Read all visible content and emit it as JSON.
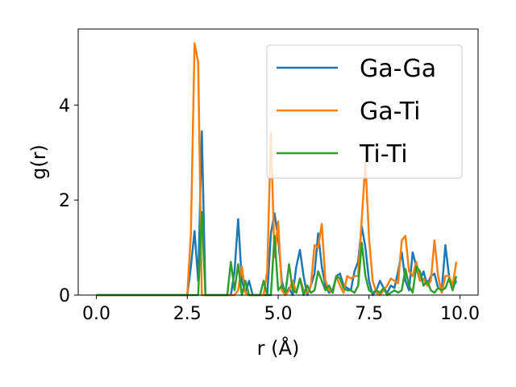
{
  "chart_data": {
    "type": "line",
    "title": "",
    "xlabel": "r (Å)",
    "ylabel": "g(r)",
    "xlim": [
      -0.5,
      10.5
    ],
    "ylim": [
      0,
      5.6
    ],
    "xticks": [
      0.0,
      2.5,
      5.0,
      7.5,
      10.0
    ],
    "xtick_labels": [
      "0.0",
      "2.5",
      "5.0",
      "7.5",
      "10.0"
    ],
    "yticks": [
      0,
      2,
      4
    ],
    "ytick_labels": [
      "0",
      "2",
      "4"
    ],
    "grid": false,
    "legend_position": "top-right",
    "series": [
      {
        "name": "Ga-Ga",
        "color": "#1f77b4",
        "x": [
          0.0,
          2.5,
          2.6,
          2.7,
          2.8,
          2.9,
          3.0,
          3.7,
          3.8,
          3.9,
          4.0,
          4.1,
          4.2,
          4.3,
          4.7,
          4.8,
          4.9,
          5.0,
          5.1,
          5.2,
          5.3,
          5.4,
          5.5,
          5.6,
          5.7,
          5.8,
          5.9,
          6.0,
          6.1,
          6.2,
          6.3,
          6.4,
          6.5,
          6.6,
          6.7,
          6.8,
          6.9,
          7.0,
          7.1,
          7.2,
          7.3,
          7.4,
          7.5,
          7.6,
          7.7,
          7.8,
          7.9,
          8.0,
          8.1,
          8.2,
          8.3,
          8.4,
          8.5,
          8.6,
          8.7,
          8.8,
          8.9,
          9.0,
          9.1,
          9.2,
          9.3,
          9.4,
          9.5,
          9.6,
          9.7,
          9.8,
          9.9
        ],
        "y": [
          0,
          0,
          0.6,
          1.35,
          0.3,
          3.45,
          0,
          0,
          0.5,
          1.6,
          0.3,
          0.05,
          0.3,
          0,
          0,
          1.3,
          1.72,
          1.2,
          0.3,
          0,
          0.15,
          0,
          0.6,
          0.95,
          0.4,
          0,
          0.2,
          0.45,
          1.3,
          0.6,
          0.2,
          0.05,
          0.1,
          0.4,
          0.45,
          0.2,
          0.15,
          0.1,
          0.5,
          0.7,
          1.45,
          1.0,
          0.3,
          0,
          0.1,
          0.3,
          0.15,
          0.05,
          0.2,
          0.15,
          0.5,
          0.9,
          0.3,
          0.1,
          0.9,
          0.6,
          0.3,
          0.5,
          0.2,
          0.4,
          0.45,
          0.15,
          0.1,
          1.05,
          0.4,
          0.15,
          0.3
        ]
      },
      {
        "name": "Ga-Ti",
        "color": "#ff7f0e",
        "x": [
          0.0,
          2.5,
          2.6,
          2.7,
          2.8,
          2.9,
          3.0,
          3.8,
          3.9,
          4.0,
          4.1,
          4.2,
          4.6,
          4.7,
          4.8,
          4.9,
          5.0,
          5.1,
          5.2,
          5.3,
          5.4,
          5.5,
          5.6,
          5.7,
          5.8,
          5.9,
          6.0,
          6.1,
          6.2,
          6.3,
          6.4,
          6.5,
          6.6,
          6.7,
          6.8,
          6.9,
          7.0,
          7.1,
          7.2,
          7.3,
          7.4,
          7.5,
          7.6,
          7.7,
          7.8,
          7.9,
          8.0,
          8.1,
          8.2,
          8.3,
          8.4,
          8.5,
          8.6,
          8.7,
          8.8,
          8.9,
          9.0,
          9.1,
          9.2,
          9.3,
          9.4,
          9.5,
          9.6,
          9.7,
          9.8,
          9.9
        ],
        "y": [
          0,
          0,
          1.3,
          5.3,
          4.9,
          0,
          0,
          0,
          0.1,
          0.6,
          0.05,
          0,
          0,
          0.5,
          3.42,
          0.8,
          1.55,
          0.1,
          0,
          0.1,
          0.3,
          0.05,
          0.35,
          0.1,
          0.05,
          0.2,
          1.05,
          1.0,
          1.5,
          0.3,
          0.1,
          0.05,
          0.4,
          0.2,
          0.05,
          0.4,
          0.35,
          0.4,
          0.4,
          1.6,
          2.8,
          1.2,
          0.3,
          0.05,
          0,
          0.1,
          0.2,
          0.35,
          0.3,
          0.25,
          1.15,
          1.25,
          0.5,
          0.4,
          0.7,
          0.3,
          0.35,
          0.2,
          0.3,
          1.15,
          0.4,
          0.05,
          0.4,
          0.4,
          0.2,
          0.7
        ]
      },
      {
        "name": "Ti-Ti",
        "color": "#2ca02c",
        "x": [
          0.0,
          2.8,
          2.9,
          3.0,
          3.6,
          3.7,
          3.8,
          3.9,
          4.0,
          4.1,
          4.2,
          4.5,
          4.6,
          4.7,
          4.8,
          4.9,
          5.0,
          5.1,
          5.2,
          5.3,
          5.4,
          5.5,
          5.6,
          5.7,
          5.8,
          5.9,
          6.0,
          6.1,
          6.2,
          6.3,
          6.4,
          6.5,
          6.6,
          6.7,
          6.8,
          6.9,
          7.0,
          7.1,
          7.2,
          7.3,
          7.4,
          7.5,
          7.6,
          7.7,
          7.8,
          7.9,
          8.0,
          8.1,
          8.2,
          8.3,
          8.4,
          8.5,
          8.6,
          8.7,
          8.8,
          8.9,
          9.0,
          9.1,
          9.2,
          9.3,
          9.4,
          9.5,
          9.6,
          9.7,
          9.8,
          9.9
        ],
        "y": [
          0,
          0,
          1.75,
          0,
          0,
          0.7,
          0.1,
          0.65,
          0,
          0.3,
          0,
          0,
          0.3,
          0,
          0,
          1.25,
          0.1,
          0.2,
          0.05,
          0.65,
          0.1,
          0.05,
          0.35,
          0,
          0.2,
          0.05,
          0.1,
          0.5,
          0.3,
          0.1,
          0.2,
          0.05,
          0.4,
          0.35,
          0.15,
          0.1,
          0.1,
          0.05,
          0.2,
          1.1,
          0.4,
          0.1,
          0.05,
          0.1,
          0.05,
          0.15,
          0,
          0.05,
          0.1,
          0.05,
          0.1,
          0.55,
          0.2,
          0.05,
          0.6,
          0.5,
          0.2,
          0.3,
          0.1,
          0.05,
          0.15,
          0.1,
          0.15,
          0.35,
          0.1,
          0.4
        ]
      }
    ]
  }
}
